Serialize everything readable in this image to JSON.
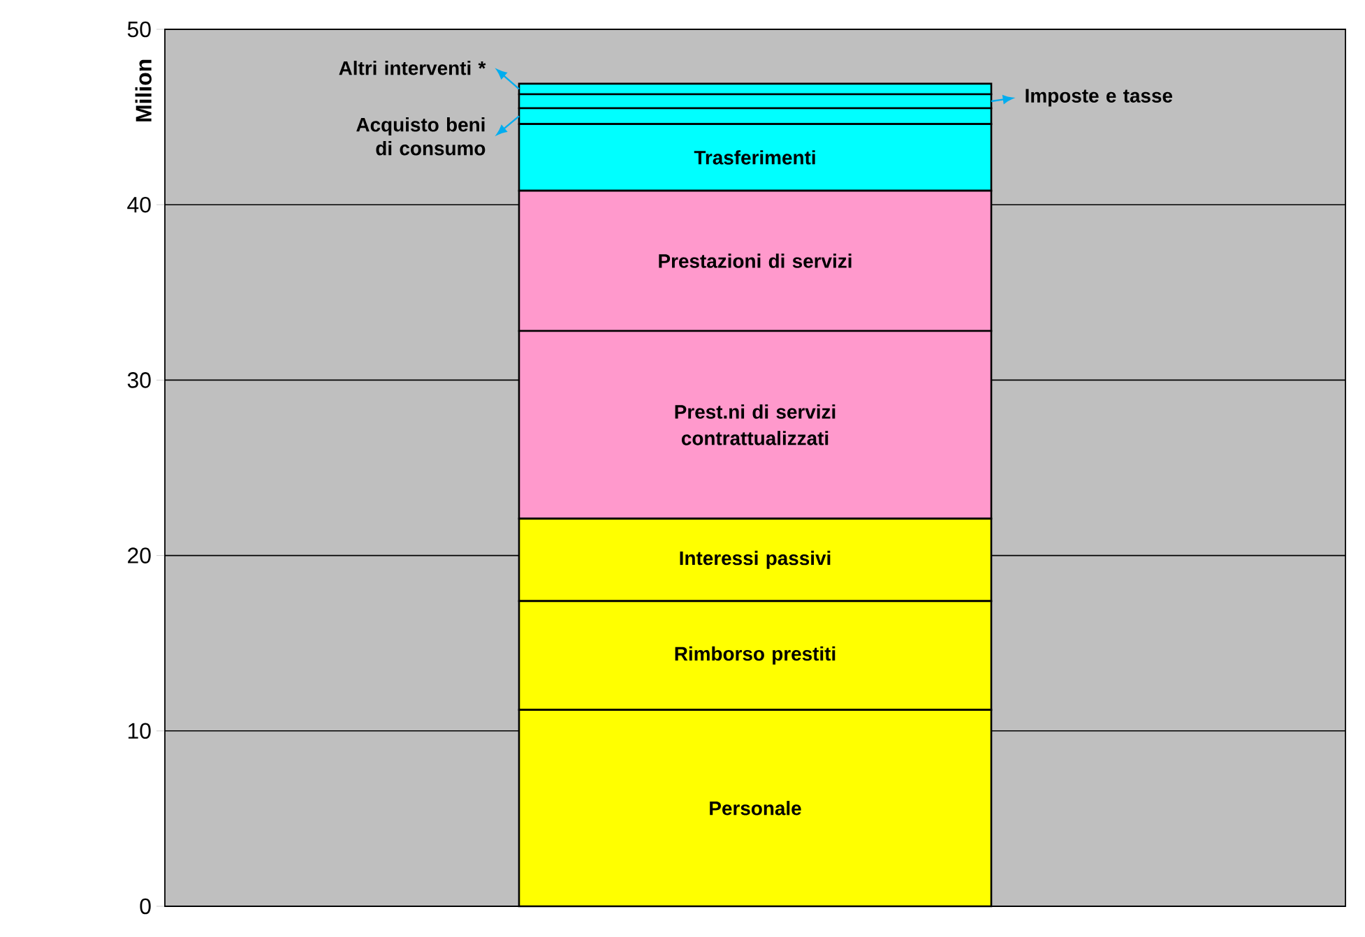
{
  "chart_data": {
    "type": "bar",
    "stacked": true,
    "ylabel": "Milion",
    "categories": [
      null
    ],
    "ylim": [
      0,
      50
    ],
    "yticks": [
      0,
      10,
      20,
      30,
      40,
      50
    ],
    "grid": "y",
    "tick_labels": "y",
    "series": [
      {
        "name": "Personale",
        "color": "#ffff00",
        "values": [
          11.2
        ]
      },
      {
        "name": "Rimborso prestiti",
        "color": "#ffff00",
        "values": [
          6.2
        ]
      },
      {
        "name": "Interessi passivi",
        "color": "#ffff00",
        "values": [
          4.7
        ]
      },
      {
        "name": "Prest.ni di servizi contrattualizzati",
        "color": "#ff99cc",
        "values": [
          10.7
        ]
      },
      {
        "name": "Prestazioni di servizi",
        "color": "#ff99cc",
        "values": [
          8.0
        ]
      },
      {
        "name": "Trasferimenti",
        "color": "#00ffff",
        "values": [
          3.8
        ]
      },
      {
        "name": "Acquisto beni di consumo",
        "color": "#00ffff",
        "values": [
          0.9
        ]
      },
      {
        "name": "Imposte e tasse",
        "color": "#00ffff",
        "values": [
          0.8
        ]
      },
      {
        "name": "Altri interventi *",
        "color": "#00ffff",
        "values": [
          0.6
        ]
      }
    ]
  }
}
